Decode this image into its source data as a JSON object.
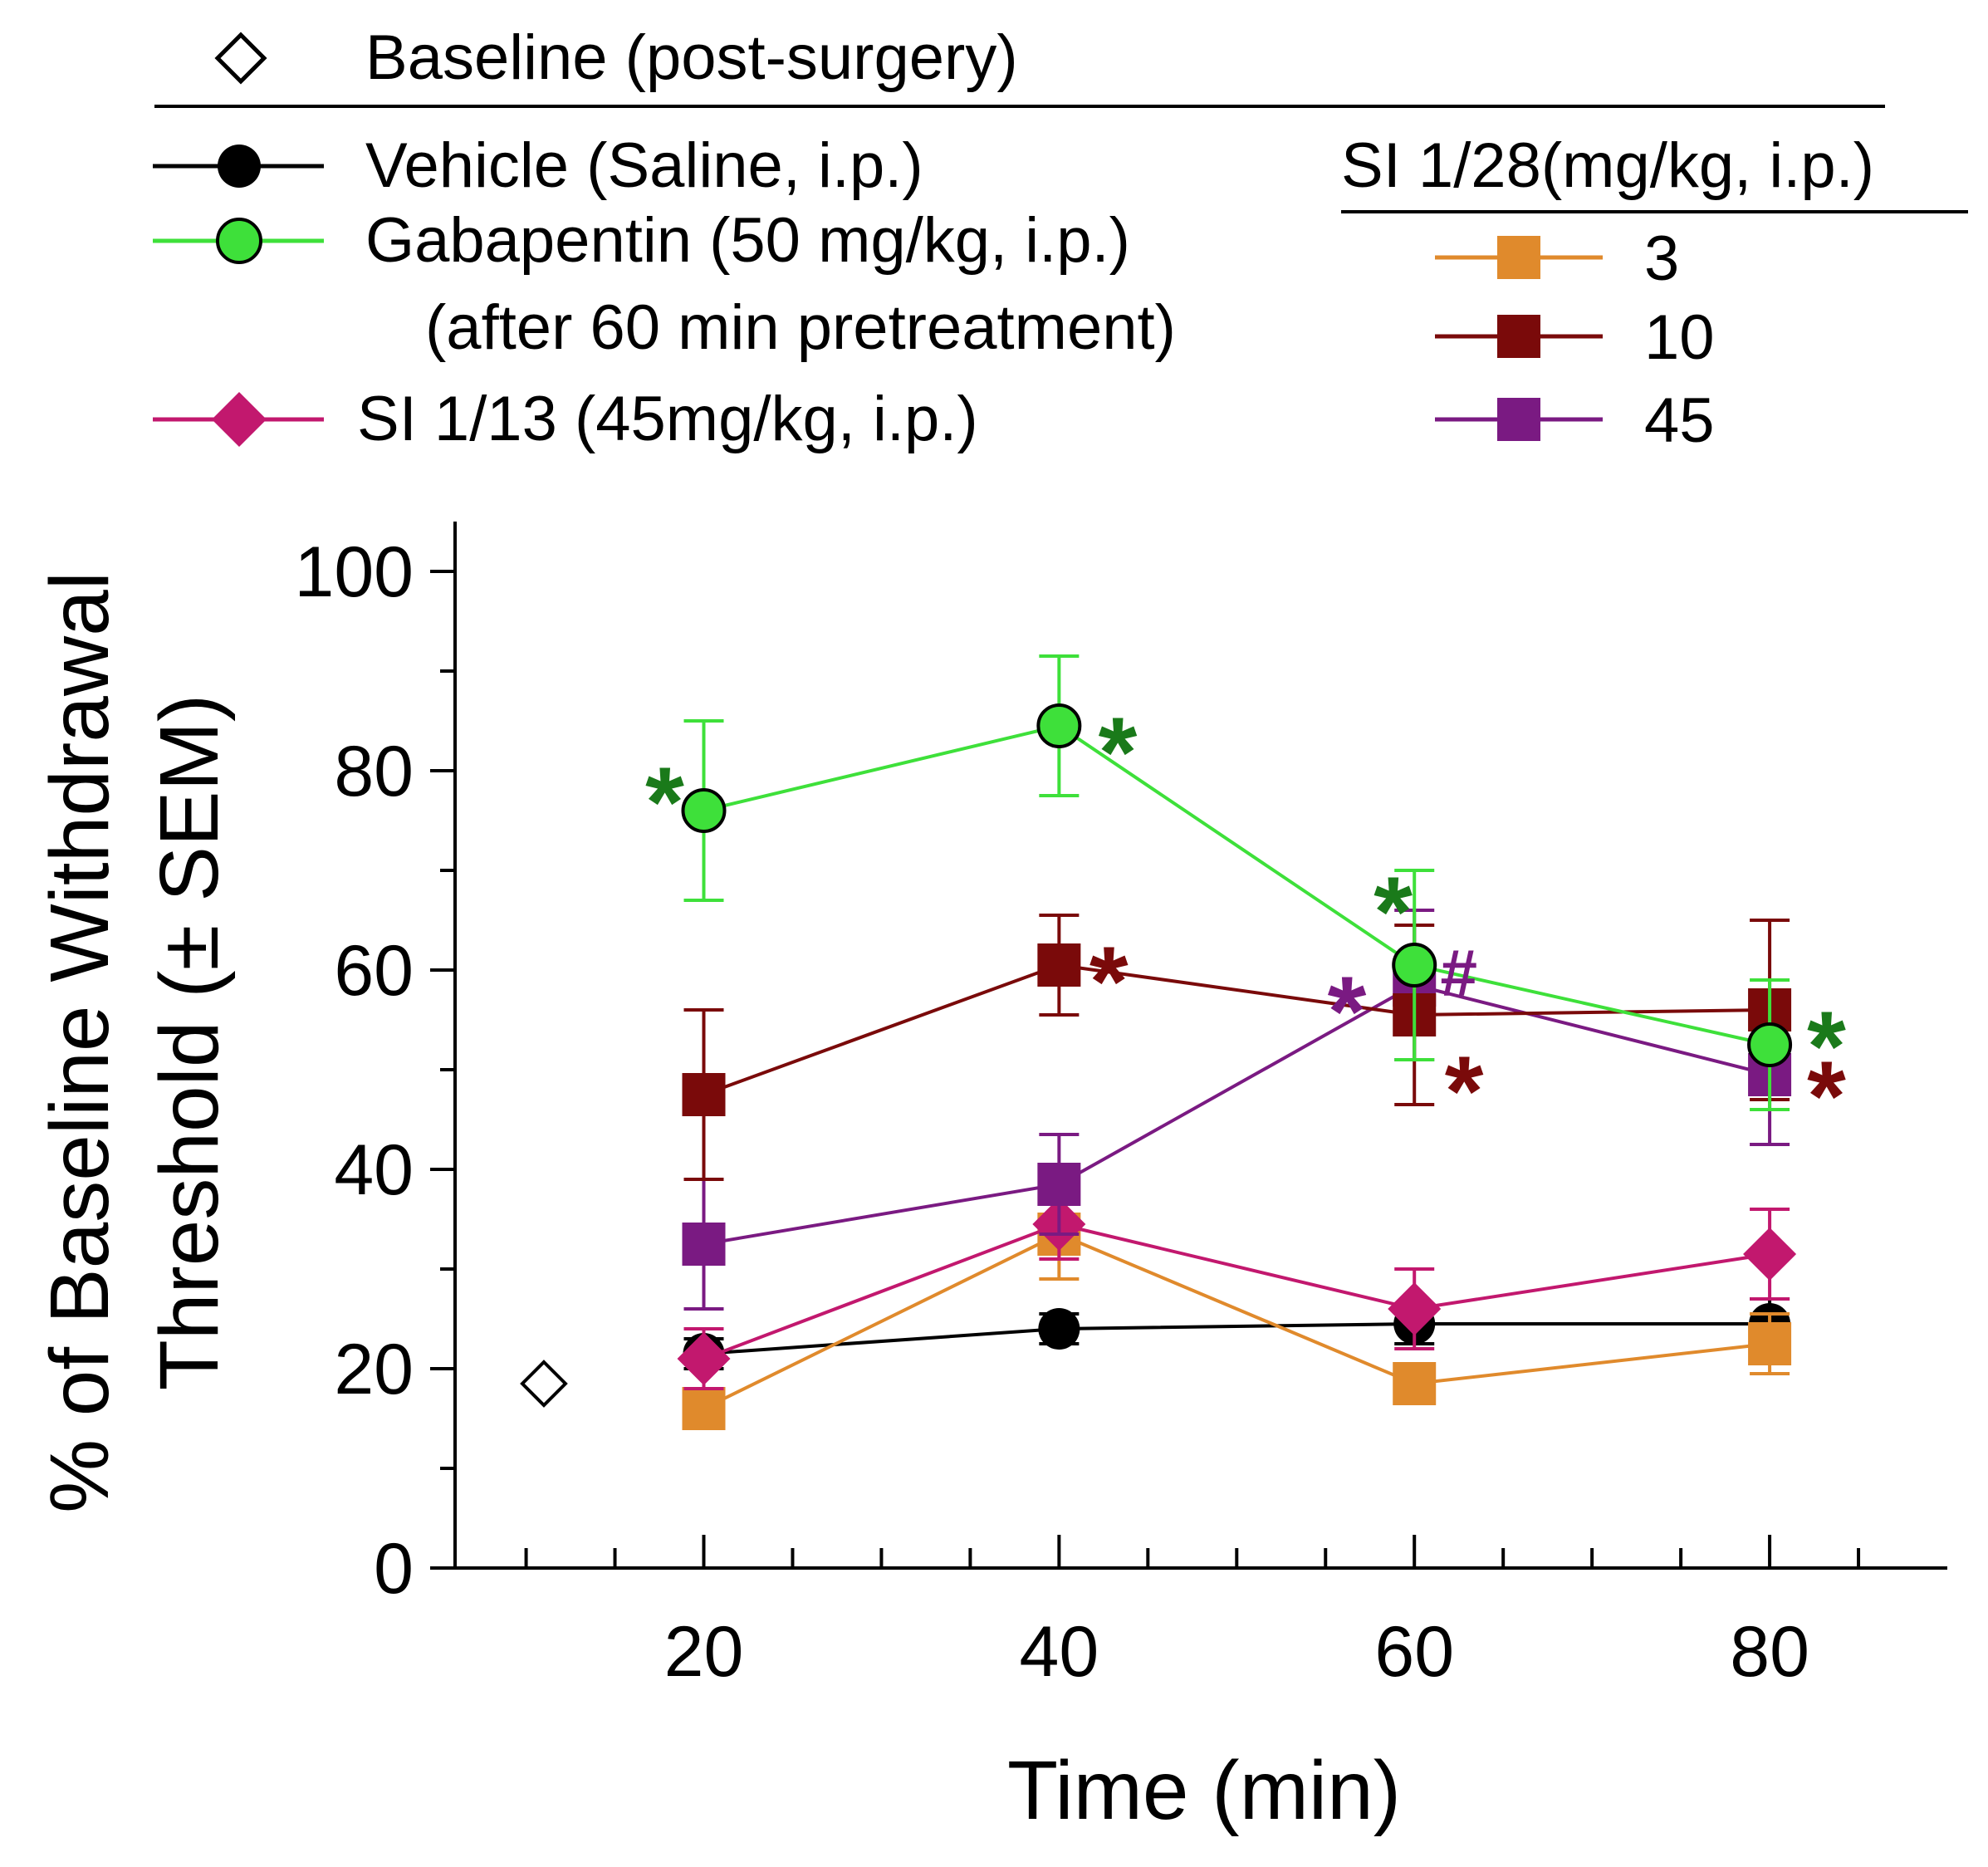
{
  "legend": {
    "baseline_label": "Baseline (post-surgery)",
    "vehicle_label": "Vehicle (Saline, i.p.)",
    "gabapentin_label": "Gabapentin (50 mg/kg, i.p.)",
    "gabapentin_note": "(after 60 min pretreatment)",
    "si113_label": "SI 1/13 (45mg/kg, i.p.)",
    "si128_title": "SI 1/28(mg/kg, i.p.)",
    "dose_3": "3",
    "dose_10": "10",
    "dose_45": "45"
  },
  "chart_data": {
    "type": "line",
    "title": "",
    "xlabel": "Time (min)",
    "ylabel_line1": "% of Baseline Withdrawal",
    "ylabel_line2": "Threshold (± SEM)",
    "xlim": [
      6,
      90
    ],
    "ylim": [
      0,
      105
    ],
    "x_ticks": [
      20,
      40,
      60,
      80
    ],
    "x_tick_labels": [
      "20",
      "40",
      "60",
      "80"
    ],
    "y_ticks": [
      0,
      20,
      40,
      60,
      80,
      100
    ],
    "y_tick_labels": [
      "0",
      "20",
      "40",
      "60",
      "80",
      "100"
    ],
    "baseline": {
      "name": "Baseline (post-surgery)",
      "x": 11,
      "y": 18.5,
      "marker": "open-diamond",
      "color": "#000000"
    },
    "series": [
      {
        "name": "Vehicle (Saline, i.p.)",
        "color": "#000000",
        "marker": "circle",
        "x": [
          20,
          40,
          60,
          80
        ],
        "y": [
          21.5,
          24,
          24.5,
          24.5
        ],
        "err": [
          1.5,
          1.5,
          2,
          2.5
        ]
      },
      {
        "name": "SI 1/28 3 mg/kg",
        "color": "#e08a2c",
        "marker": "square",
        "x": [
          20,
          40,
          60,
          80
        ],
        "y": [
          16,
          33.5,
          18.5,
          22.5
        ],
        "err": [
          2,
          4.5,
          1.5,
          3
        ]
      },
      {
        "name": "SI 1/13 (45mg/kg, i.p.)",
        "color": "#c2186e",
        "marker": "diamond",
        "x": [
          20,
          40,
          60,
          80
        ],
        "y": [
          21,
          34.5,
          26,
          31.5
        ],
        "err": [
          3,
          3.5,
          4,
          4.5
        ]
      },
      {
        "name": "SI 1/28 45 mg/kg",
        "color": "#7a1a82",
        "marker": "square",
        "x": [
          20,
          40,
          60,
          80
        ],
        "y": [
          32.5,
          38.5,
          58.5,
          49.5
        ],
        "err": [
          6.5,
          5,
          7.5,
          7
        ]
      },
      {
        "name": "SI 1/28 10 mg/kg",
        "color": "#7a0a0a",
        "marker": "square",
        "x": [
          20,
          40,
          60,
          80
        ],
        "y": [
          47.5,
          60.5,
          55.5,
          56
        ],
        "err": [
          8.5,
          5,
          9,
          9
        ]
      },
      {
        "name": "Gabapentin (50 mg/kg, i.p.)",
        "color": "#3ee03a",
        "marker": "circle",
        "x": [
          20,
          40,
          60,
          80
        ],
        "y": [
          76,
          84.5,
          60.5,
          52.5
        ],
        "err": [
          9,
          7,
          9.5,
          6.5
        ]
      }
    ],
    "annotations": [
      {
        "text": "*",
        "color": "#1a7a1a",
        "x": 17.8,
        "y": 78
      },
      {
        "text": "*",
        "color": "#1a7a1a",
        "x": 43.3,
        "y": 83
      },
      {
        "text": "*",
        "color": "#1a7a1a",
        "x": 58.8,
        "y": 67
      },
      {
        "text": "*",
        "color": "#1a7a1a",
        "x": 83.2,
        "y": 53.5
      },
      {
        "text": "*",
        "color": "#7a0a0a",
        "x": 42.8,
        "y": 60
      },
      {
        "text": "*",
        "color": "#7a0a0a",
        "x": 62.8,
        "y": 49
      },
      {
        "text": "*",
        "color": "#7a0a0a",
        "x": 83.2,
        "y": 48.5
      },
      {
        "text": "*",
        "color": "#7a1a82",
        "x": 56.2,
        "y": 57
      },
      {
        "text": "#",
        "color": "#7a1a82",
        "x": 62.5,
        "y": 59.5
      }
    ]
  }
}
